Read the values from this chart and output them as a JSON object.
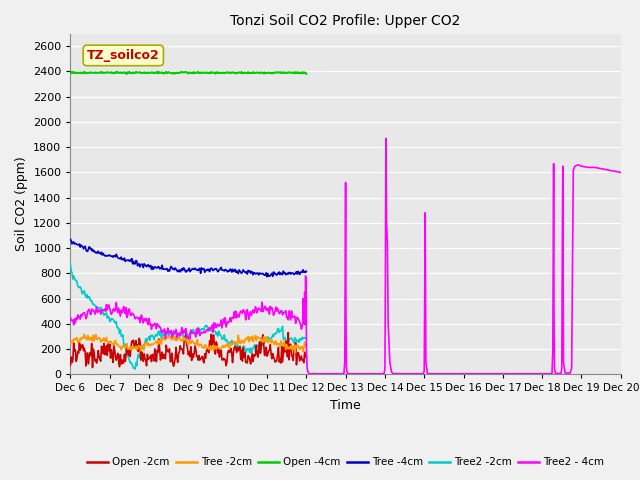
{
  "title": "Tonzi Soil CO2 Profile: Upper CO2",
  "xlabel": "Time",
  "ylabel": "Soil CO2 (ppm)",
  "ylim": [
    0,
    2700
  ],
  "yticks": [
    0,
    200,
    400,
    600,
    800,
    1000,
    1200,
    1400,
    1600,
    1800,
    2000,
    2200,
    2400,
    2600
  ],
  "xlim_start": 0,
  "xlim_end": 336,
  "xtick_positions": [
    0,
    24,
    48,
    72,
    96,
    120,
    144,
    168,
    192,
    216,
    240,
    264,
    288,
    312,
    336
  ],
  "xtick_labels": [
    "Dec 6",
    "Dec 7",
    "Dec 8",
    "Dec 9",
    "Dec 10",
    "Dec 11",
    "Dec 12",
    "Dec 13",
    "Dec 14",
    "Dec 15",
    "Dec 16",
    "Dec 17",
    "Dec 18",
    "Dec 19",
    "Dec 20"
  ],
  "legend_entries": [
    "Open -2cm",
    "Tree -2cm",
    "Open -4cm",
    "Tree -4cm",
    "Tree2 -2cm",
    "Tree2 - 4cm"
  ],
  "legend_colors": [
    "#cc0000",
    "#ff9900",
    "#00cc00",
    "#0000cc",
    "#00cccc",
    "#ff00ff"
  ],
  "annotation_text": "TZ_soilco2",
  "plot_bgcolor": "#e8e8e8",
  "fig_bgcolor": "#f0f0f0",
  "grid_color": "#ffffff"
}
